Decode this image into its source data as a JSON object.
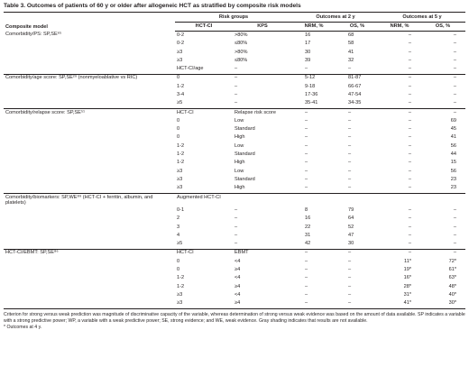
{
  "table": {
    "caption": "Table 3.  Outcomes of patients of 60 y or older after allogeneic HCT as stratified by composite risk models",
    "headers": {
      "composite_model": "Composite model",
      "risk_groups": "Risk groups",
      "outcomes_2y": "Outcomes at 2 y",
      "outcomes_5y": "Outcomes at 5 y",
      "hct_ci": "HCT-CI",
      "kps": "KPS",
      "nrm": "NRM, %",
      "os": "OS, %"
    },
    "rows": [
      {
        "model": "Comorbidity/PS: SP,SE⁶⁵",
        "hct": "0-2",
        "kps": ">80%",
        "nrm2": "16",
        "os2": "68",
        "nrm5": "–",
        "os5": "–"
      },
      {
        "model": "",
        "hct": "0-2",
        "kps": "≤80%",
        "nrm2": "17",
        "os2": "58",
        "nrm5": "–",
        "os5": "–"
      },
      {
        "model": "",
        "hct": "≥3",
        "kps": ">80%",
        "nrm2": "30",
        "os2": "41",
        "nrm5": "–",
        "os5": "–"
      },
      {
        "model": "",
        "hct": "≥3",
        "kps": "≤80%",
        "nrm2": "39",
        "os2": "32",
        "nrm5": "–",
        "os5": "–"
      },
      {
        "model": "",
        "hct": "HCT-CI/age",
        "kps": "–",
        "nrm2": "–",
        "os2": "–",
        "nrm5": "–",
        "os5": "–"
      },
      {
        "model": "Comorbidity/age score: SP,SE²⁹ (nonmyeloablative vs RIC)",
        "hct": "0",
        "kps": "–",
        "nrm2": "5-12",
        "os2": "81-87",
        "nrm5": "–",
        "os5": "–"
      },
      {
        "model": "",
        "hct": "1-2",
        "kps": "–",
        "nrm2": "9-18",
        "os2": "66-67",
        "nrm5": "–",
        "os5": "–"
      },
      {
        "model": "",
        "hct": "3-4",
        "kps": "–",
        "nrm2": "17-36",
        "os2": "47-54",
        "nrm5": "–",
        "os5": "–"
      },
      {
        "model": "",
        "hct": "≥5",
        "kps": "–",
        "nrm2": "35-41",
        "os2": "34-35",
        "nrm5": "–",
        "os5": "–"
      },
      {
        "model": "Comorbidity/relapse score: SP,SE⁵¹",
        "hct": "HCT-CI",
        "kps": "Relapse risk score",
        "nrm2": "–",
        "os2": "–",
        "nrm5": "–",
        "os5": "–"
      },
      {
        "model": "",
        "hct": "0",
        "kps": "Low",
        "nrm2": "–",
        "os2": "–",
        "nrm5": "–",
        "os5": "69"
      },
      {
        "model": "",
        "hct": "0",
        "kps": "Standard",
        "nrm2": "–",
        "os2": "–",
        "nrm5": "–",
        "os5": "45"
      },
      {
        "model": "",
        "hct": "0",
        "kps": "High",
        "nrm2": "–",
        "os2": "–",
        "nrm5": "–",
        "os5": "41"
      },
      {
        "model": "",
        "hct": "1-2",
        "kps": "Low",
        "nrm2": "–",
        "os2": "–",
        "nrm5": "–",
        "os5": "56"
      },
      {
        "model": "",
        "hct": "1-2",
        "kps": "Standard",
        "nrm2": "–",
        "os2": "–",
        "nrm5": "–",
        "os5": "44"
      },
      {
        "model": "",
        "hct": "1-2",
        "kps": "High",
        "nrm2": "–",
        "os2": "–",
        "nrm5": "–",
        "os5": "15"
      },
      {
        "model": "",
        "hct": "≥3",
        "kps": "Low",
        "nrm2": "–",
        "os2": "–",
        "nrm5": "–",
        "os5": "56"
      },
      {
        "model": "",
        "hct": "≥3",
        "kps": "Standard",
        "nrm2": "–",
        "os2": "–",
        "nrm5": "–",
        "os5": "23"
      },
      {
        "model": "",
        "hct": "≥3",
        "kps": "High",
        "nrm2": "–",
        "os2": "–",
        "nrm5": "–",
        "os5": "23"
      },
      {
        "model": "Comorbidity/biomarkers: SP,WE⁸⁹ (HCT-CI + ferritin, albumin, and platelets)",
        "hct": "Augmented HCT-CI",
        "kps": "",
        "nrm2": "",
        "os2": "",
        "nrm5": "",
        "os5": ""
      },
      {
        "model": "",
        "hct": "0-1",
        "kps": "–",
        "nrm2": "8",
        "os2": "79",
        "nrm5": "–",
        "os5": "–"
      },
      {
        "model": "",
        "hct": "2",
        "kps": "–",
        "nrm2": "16",
        "os2": "64",
        "nrm5": "–",
        "os5": "–"
      },
      {
        "model": "",
        "hct": "3",
        "kps": "–",
        "nrm2": "22",
        "os2": "52",
        "nrm5": "–",
        "os5": "–"
      },
      {
        "model": "",
        "hct": "4",
        "kps": "–",
        "nrm2": "31",
        "os2": "47",
        "nrm5": "–",
        "os5": "–"
      },
      {
        "model": "",
        "hct": "≥5",
        "kps": "–",
        "nrm2": "42",
        "os2": "30",
        "nrm5": "–",
        "os5": "–"
      },
      {
        "model": "HCT-CI/EBMT: SP,SE⁸⁶",
        "hct": "HCT-CI",
        "kps": "EBMT",
        "nrm2": "–",
        "os2": "–",
        "nrm5": "–",
        "os5": "–"
      },
      {
        "model": "",
        "hct": "0",
        "kps": "<4",
        "nrm2": "–",
        "os2": "–",
        "nrm5": "11*",
        "os5": "72*"
      },
      {
        "model": "",
        "hct": "0",
        "kps": "≥4",
        "nrm2": "–",
        "os2": "–",
        "nrm5": "19*",
        "os5": "61*"
      },
      {
        "model": "",
        "hct": "1-2",
        "kps": "<4",
        "nrm2": "–",
        "os2": "–",
        "nrm5": "16*",
        "os5": "63*"
      },
      {
        "model": "",
        "hct": "1-2",
        "kps": "≥4",
        "nrm2": "–",
        "os2": "–",
        "nrm5": "28*",
        "os5": "48*"
      },
      {
        "model": "",
        "hct": "≥3",
        "kps": "<4",
        "nrm2": "–",
        "os2": "–",
        "nrm5": "31*",
        "os5": "40*"
      },
      {
        "model": "",
        "hct": "≥3",
        "kps": "≥4",
        "nrm2": "–",
        "os2": "–",
        "nrm5": "41*",
        "os5": "30*"
      }
    ],
    "group_starts": [
      5,
      9,
      19,
      25
    ],
    "footnote": "Criterion for strong versus weak prediction was magnitude of discriminative capacity of the variable, whereas determination of strong versus weak evidence was based on the amount of data available. SP indicates a variable with a strong predictive power; WP, a variable with a weak predictive power; SE, strong evidence; and WE, weak evidence. Gray shading indicates that results are not available.",
    "footnote_star": "* Outcomes at 4 y."
  }
}
